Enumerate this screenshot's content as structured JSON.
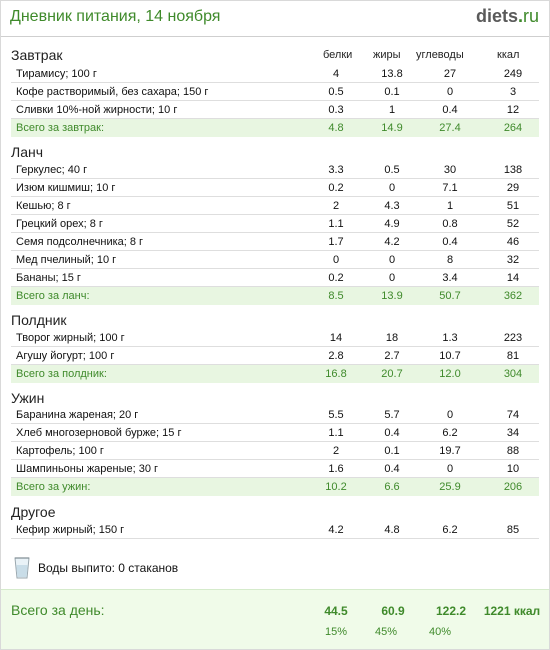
{
  "header": {
    "title": "Дневник питания, 14 ноября",
    "logo_brand": "diets",
    "logo_dot": ".",
    "logo_tld": "ru"
  },
  "columns": {
    "protein": "белки",
    "fat": "жиры",
    "carbs": "углеводы",
    "kcal": "ккал"
  },
  "meals": {
    "breakfast": {
      "title": "Завтрак",
      "items": [
        {
          "name": "Тирамису; 100 г",
          "protein": "4",
          "fat": "13.8",
          "carbs": "27",
          "kcal": "249"
        },
        {
          "name": "Кофе растворимый, без сахара; 150 г",
          "protein": "0.5",
          "fat": "0.1",
          "carbs": "0",
          "kcal": "3"
        },
        {
          "name": "Сливки 10%-ной жирности; 10 г",
          "protein": "0.3",
          "fat": "1",
          "carbs": "0.4",
          "kcal": "12"
        }
      ],
      "total": {
        "label": "Всего за завтрак:",
        "protein": "4.8",
        "fat": "14.9",
        "carbs": "27.4",
        "kcal": "264"
      }
    },
    "lunch": {
      "title": "Ланч",
      "items": [
        {
          "name": "Геркулес; 40 г",
          "protein": "3.3",
          "fat": "0.5",
          "carbs": "30",
          "kcal": "138"
        },
        {
          "name": "Изюм кишмиш; 10 г",
          "protein": "0.2",
          "fat": "0",
          "carbs": "7.1",
          "kcal": "29"
        },
        {
          "name": "Кешью; 8 г",
          "protein": "2",
          "fat": "4.3",
          "carbs": "1",
          "kcal": "51"
        },
        {
          "name": "Грецкий орех; 8 г",
          "protein": "1.1",
          "fat": "4.9",
          "carbs": "0.8",
          "kcal": "52"
        },
        {
          "name": "Семя подсолнечника; 8 г",
          "protein": "1.7",
          "fat": "4.2",
          "carbs": "0.4",
          "kcal": "46"
        },
        {
          "name": "Мед пчелиный; 10 г",
          "protein": "0",
          "fat": "0",
          "carbs": "8",
          "kcal": "32"
        },
        {
          "name": "Бананы; 15 г",
          "protein": "0.2",
          "fat": "0",
          "carbs": "3.4",
          "kcal": "14"
        }
      ],
      "total": {
        "label": "Всего за ланч:",
        "protein": "8.5",
        "fat": "13.9",
        "carbs": "50.7",
        "kcal": "362"
      }
    },
    "snack": {
      "title": "Полдник",
      "items": [
        {
          "name": "Творог жирный; 100 г",
          "protein": "14",
          "fat": "18",
          "carbs": "1.3",
          "kcal": "223"
        },
        {
          "name": "Агушу йогурт; 100 г",
          "protein": "2.8",
          "fat": "2.7",
          "carbs": "10.7",
          "kcal": "81"
        }
      ],
      "total": {
        "label": "Всего за полдник:",
        "protein": "16.8",
        "fat": "20.7",
        "carbs": "12.0",
        "kcal": "304"
      }
    },
    "dinner": {
      "title": "Ужин",
      "items": [
        {
          "name": "Баранина жареная; 20 г",
          "protein": "5.5",
          "fat": "5.7",
          "carbs": "0",
          "kcal": "74"
        },
        {
          "name": "Хлеб многозерновой бурже; 15 г",
          "protein": "1.1",
          "fat": "0.4",
          "carbs": "6.2",
          "kcal": "34"
        },
        {
          "name": "Картофель; 100 г",
          "protein": "2",
          "fat": "0.1",
          "carbs": "19.7",
          "kcal": "88"
        },
        {
          "name": "Шампиньоны жареные; 30 г",
          "protein": "1.6",
          "fat": "0.4",
          "carbs": "0",
          "kcal": "10"
        }
      ],
      "total": {
        "label": "Всего за ужин:",
        "protein": "10.2",
        "fat": "6.6",
        "carbs": "25.9",
        "kcal": "206"
      }
    },
    "other": {
      "title": "Другое",
      "items": [
        {
          "name": "Кефир жирный; 150 г",
          "protein": "4.2",
          "fat": "4.8",
          "carbs": "6.2",
          "kcal": "85"
        }
      ]
    }
  },
  "water": {
    "icon": "glass-icon",
    "text": "Воды выпито: 0 стаканов"
  },
  "day_total": {
    "label": "Всего за день:",
    "protein": "44.5",
    "fat": "60.9",
    "carbs": "122.2",
    "kcal": "1221 ккал",
    "protein_pct": "15%",
    "fat_pct": "45%",
    "carbs_pct": "40%"
  },
  "colors": {
    "accent": "#3f8a2b",
    "total_row_bg": "#e8f6e1",
    "day_bg": "#f0fbe9"
  }
}
